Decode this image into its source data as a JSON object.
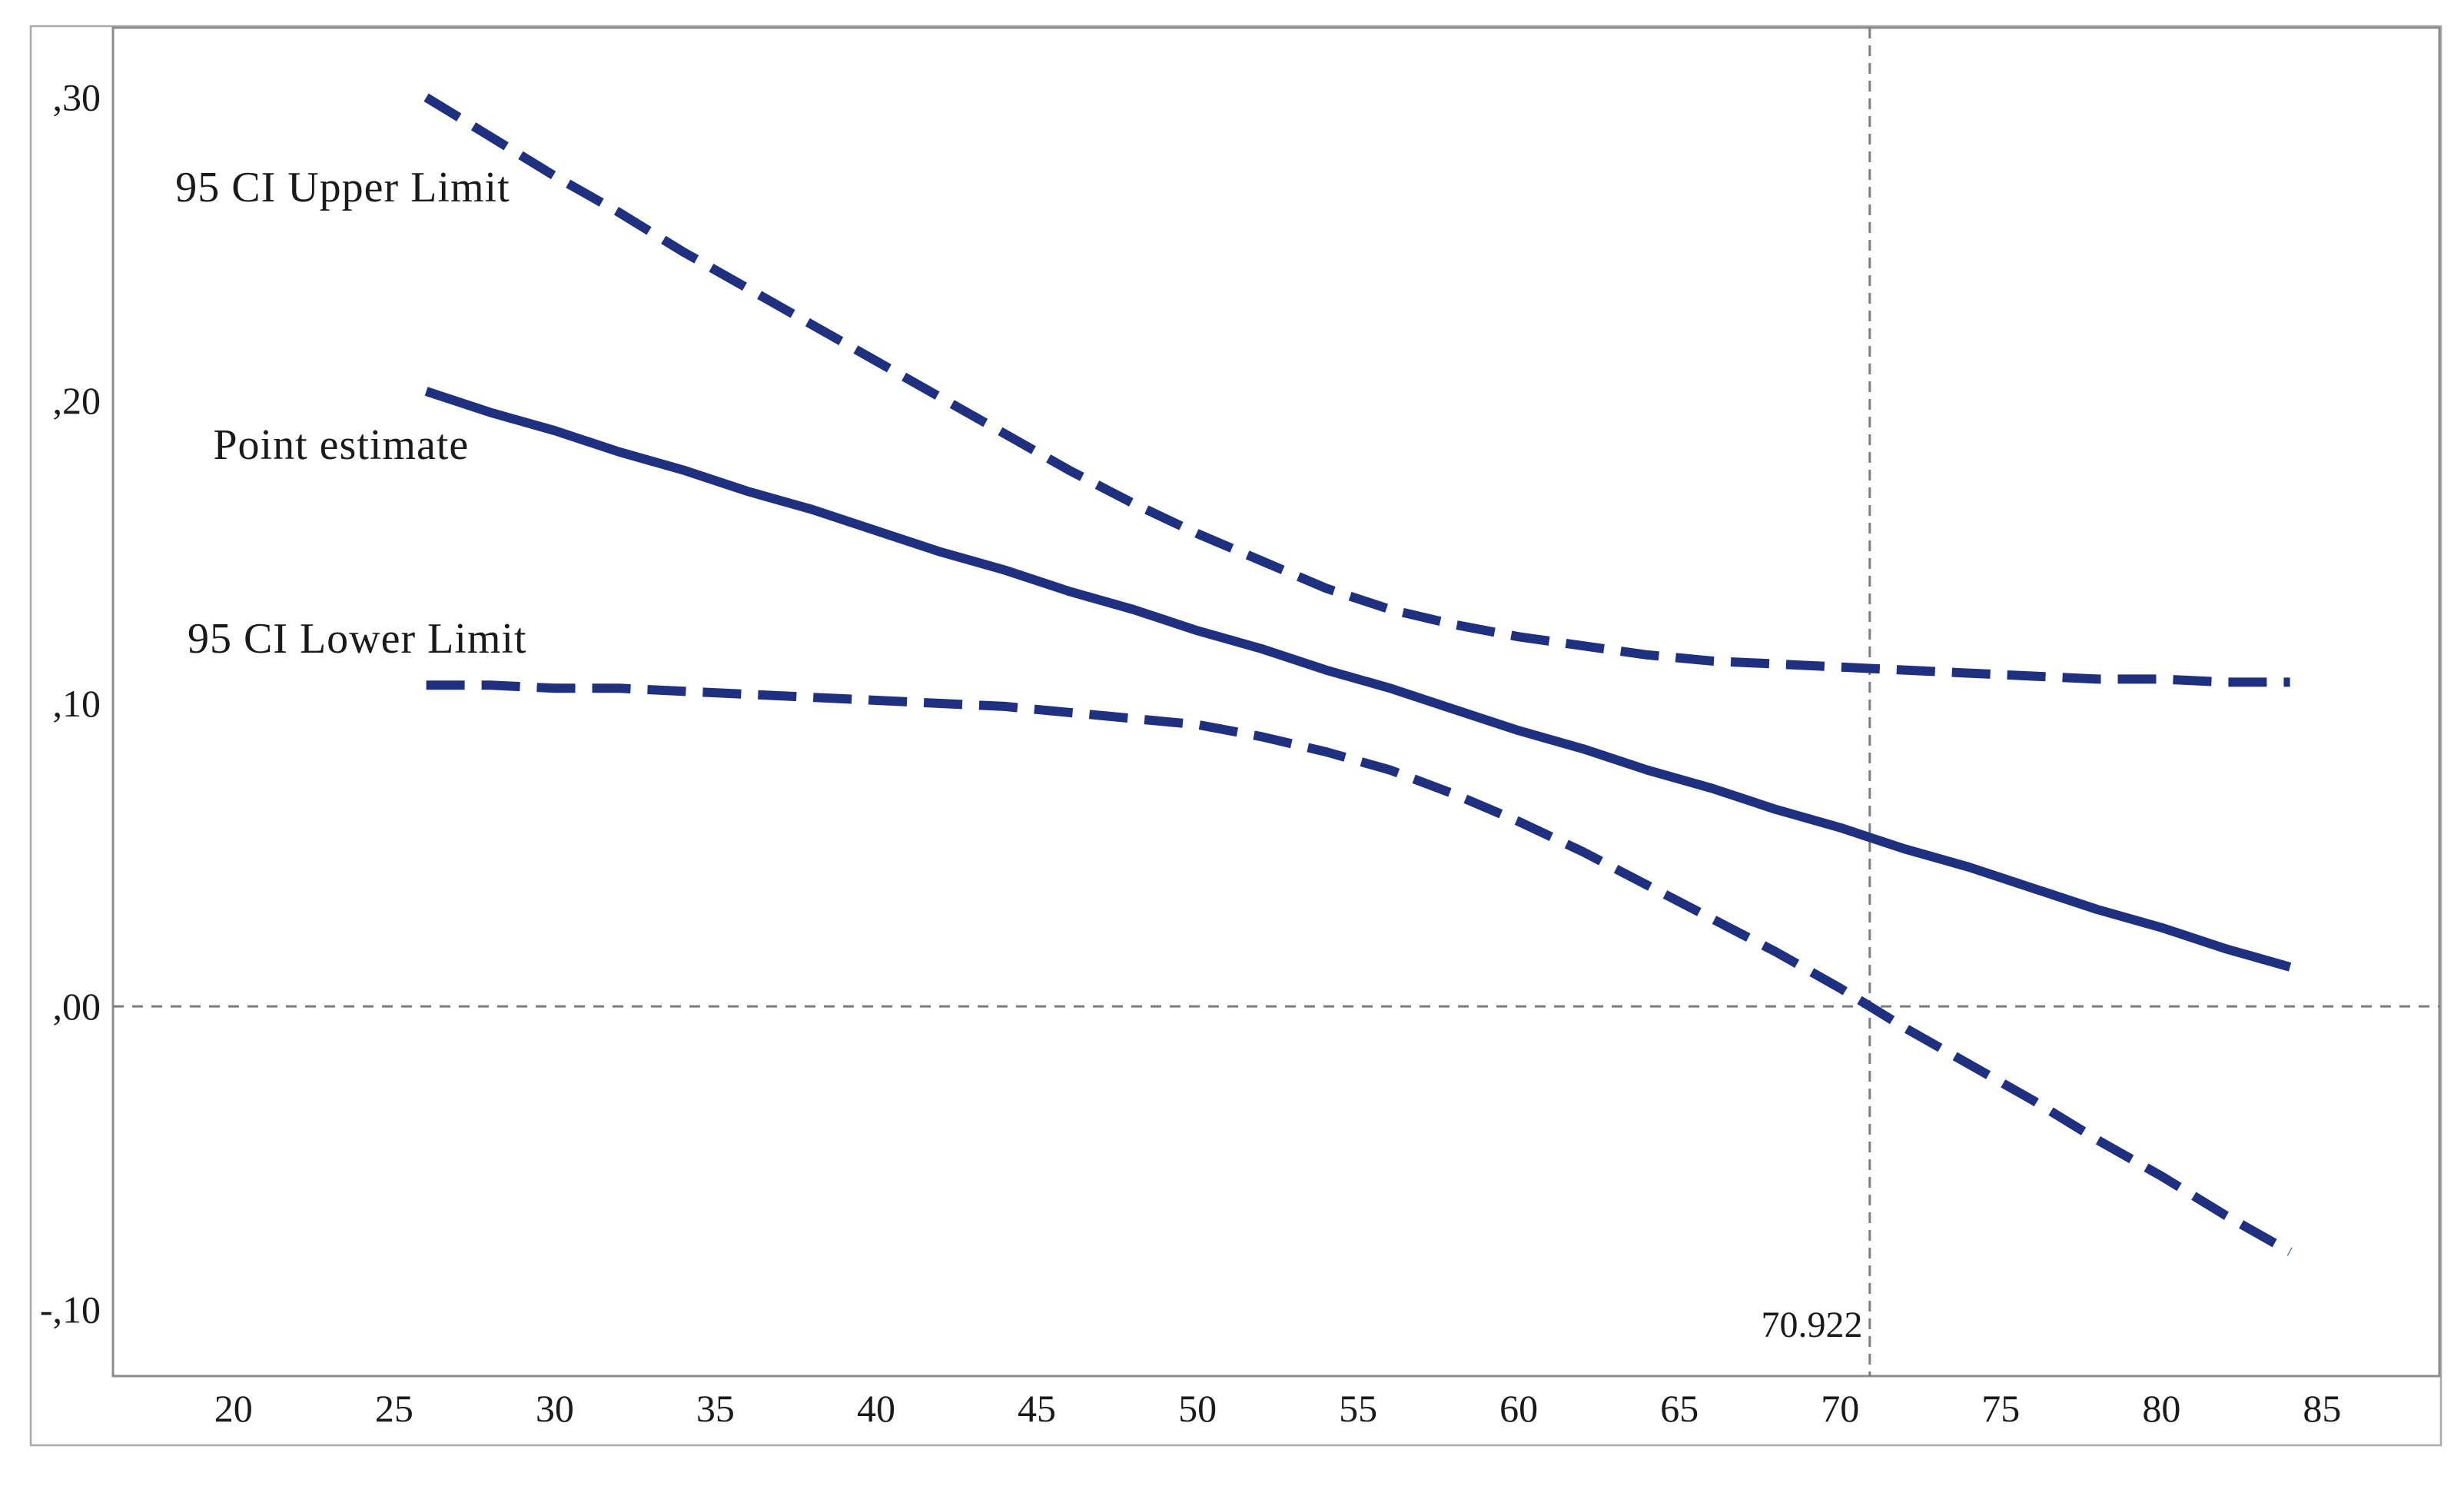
{
  "window": {
    "background": "#ffffff",
    "outer_border_color": "#ababab",
    "pane_border_color": "#8c8c8c"
  },
  "chart_data": {
    "type": "line",
    "title": "",
    "xlabel": "",
    "ylabel": "",
    "grid": "off",
    "legend": "none",
    "line_color": "#1e307f",
    "guide_color": "#7d7d7d",
    "x_axis": {
      "range": [
        16.25,
        88.65
      ],
      "ticks": [
        20,
        25,
        30,
        35,
        40,
        45,
        50,
        55,
        60,
        65,
        70,
        75,
        80,
        85
      ]
    },
    "y_axis": {
      "range": [
        -0.122,
        0.323
      ],
      "ticks": [
        {
          "label": ",30",
          "value": 0.3
        },
        {
          "label": ",20",
          "value": 0.2
        },
        {
          "label": ",10",
          "value": 0.1
        },
        {
          "label": ",00",
          "value": 0.0
        },
        {
          "label": "-,10",
          "value": -0.1
        }
      ]
    },
    "x": [
      26,
      28,
      30,
      32,
      34,
      36,
      38,
      40,
      42,
      44,
      46,
      48,
      50,
      52,
      54,
      56,
      58,
      60,
      62,
      64,
      66,
      68,
      70,
      72,
      74,
      76,
      78,
      80,
      82,
      84
    ],
    "series": [
      {
        "name": "Point estimate",
        "line_style": "solid",
        "values": [
          0.203,
          0.196,
          0.19,
          0.183,
          0.177,
          0.17,
          0.164,
          0.157,
          0.15,
          0.144,
          0.137,
          0.131,
          0.124,
          0.118,
          0.111,
          0.105,
          0.098,
          0.091,
          0.085,
          0.078,
          0.072,
          0.065,
          0.059,
          0.052,
          0.046,
          0.039,
          0.032,
          0.026,
          0.019,
          0.013
        ]
      },
      {
        "name": "95 CI Upper Limit",
        "line_style": "dashed",
        "values": [
          0.3,
          0.287,
          0.274,
          0.262,
          0.249,
          0.237,
          0.225,
          0.213,
          0.201,
          0.189,
          0.177,
          0.166,
          0.156,
          0.147,
          0.138,
          0.131,
          0.126,
          0.122,
          0.119,
          0.116,
          0.114,
          0.113,
          0.112,
          0.111,
          0.11,
          0.109,
          0.108,
          0.108,
          0.107,
          0.107
        ]
      },
      {
        "name": "95 CI Lower Limit",
        "line_style": "dashed",
        "values": [
          0.106,
          0.106,
          0.105,
          0.105,
          0.104,
          0.103,
          0.102,
          0.101,
          0.1,
          0.099,
          0.097,
          0.095,
          0.093,
          0.089,
          0.084,
          0.078,
          0.07,
          0.061,
          0.051,
          0.04,
          0.029,
          0.018,
          0.006,
          -0.007,
          -0.019,
          -0.031,
          -0.044,
          -0.056,
          -0.069,
          -0.081
        ]
      }
    ],
    "series_labels": [
      {
        "text": "95 CI Upper Limit",
        "x": 23.4,
        "y": 0.2705,
        "anchor": "middle"
      },
      {
        "text": "Point estimate",
        "x": 23.35,
        "y": 0.1855,
        "anchor": "middle"
      },
      {
        "text": "95 CI Lower Limit",
        "x": 23.85,
        "y": 0.1215,
        "anchor": "middle"
      }
    ],
    "reference_lines": {
      "horizontal": {
        "value": 0.0
      },
      "vertical": {
        "value": 70.922,
        "label": "70.922",
        "label_x": 70.7,
        "label_y": -0.105,
        "label_anchor": "end"
      }
    }
  }
}
